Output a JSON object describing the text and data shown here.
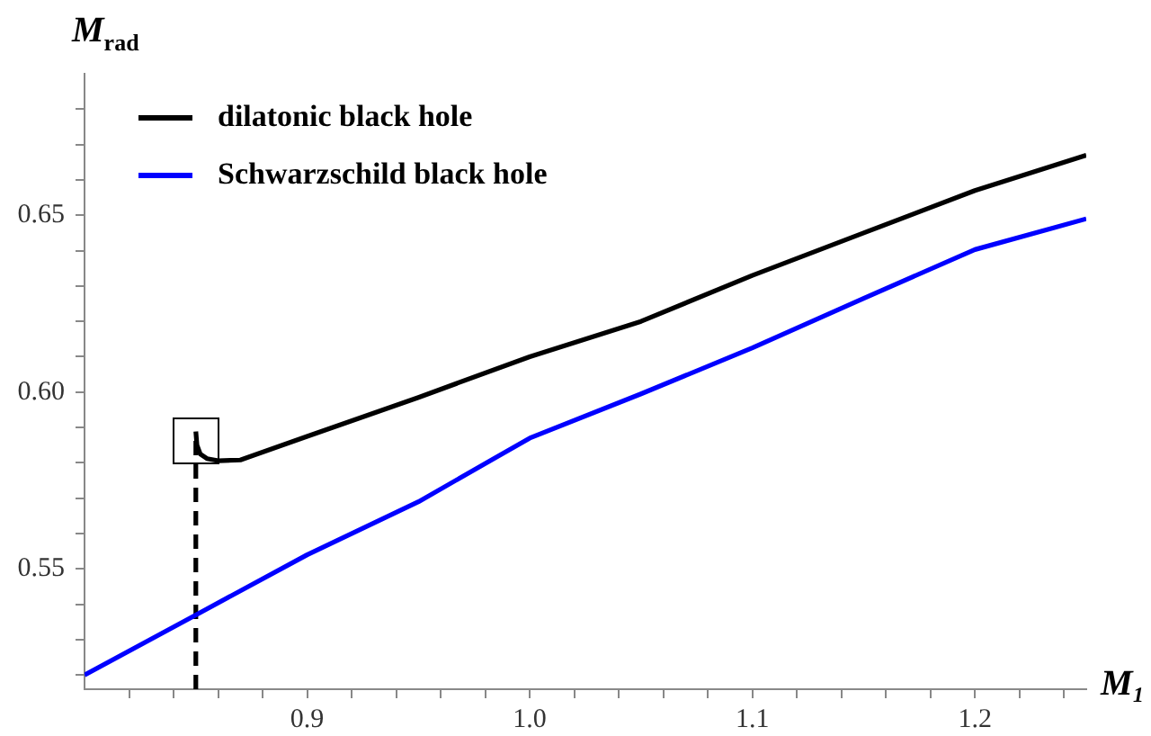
{
  "chart_data": {
    "type": "line",
    "xlabel": "M₁",
    "ylabel": "M$_{rad}$",
    "xlim": [
      0.8,
      1.25
    ],
    "ylim": [
      0.516,
      0.69
    ],
    "xticks": [
      {
        "value": 0.82,
        "label": null
      },
      {
        "value": 0.84,
        "label": null
      },
      {
        "value": 0.86,
        "label": null
      },
      {
        "value": 0.88,
        "label": null
      },
      {
        "value": 0.9,
        "label": "0.9"
      },
      {
        "value": 0.92,
        "label": null
      },
      {
        "value": 0.94,
        "label": null
      },
      {
        "value": 0.96,
        "label": null
      },
      {
        "value": 0.98,
        "label": null
      },
      {
        "value": 1.0,
        "label": "1.0"
      },
      {
        "value": 1.02,
        "label": null
      },
      {
        "value": 1.04,
        "label": null
      },
      {
        "value": 1.06,
        "label": null
      },
      {
        "value": 1.08,
        "label": null
      },
      {
        "value": 1.1,
        "label": "1.1"
      },
      {
        "value": 1.12,
        "label": null
      },
      {
        "value": 1.14,
        "label": null
      },
      {
        "value": 1.16,
        "label": null
      },
      {
        "value": 1.18,
        "label": null
      },
      {
        "value": 1.2,
        "label": "1.2"
      },
      {
        "value": 1.22,
        "label": null
      },
      {
        "value": 1.24,
        "label": null
      }
    ],
    "yticks": [
      {
        "value": 0.52,
        "label": null
      },
      {
        "value": 0.53,
        "label": null
      },
      {
        "value": 0.54,
        "label": null
      },
      {
        "value": 0.55,
        "label": "0.55"
      },
      {
        "value": 0.56,
        "label": null
      },
      {
        "value": 0.57,
        "label": null
      },
      {
        "value": 0.58,
        "label": null
      },
      {
        "value": 0.59,
        "label": null
      },
      {
        "value": 0.6,
        "label": "0.60"
      },
      {
        "value": 0.61,
        "label": null
      },
      {
        "value": 0.62,
        "label": null
      },
      {
        "value": 0.63,
        "label": null
      },
      {
        "value": 0.64,
        "label": null
      },
      {
        "value": 0.65,
        "label": "0.65"
      },
      {
        "value": 0.66,
        "label": null
      },
      {
        "value": 0.67,
        "label": null
      },
      {
        "value": 0.68,
        "label": null
      }
    ],
    "grid": false,
    "legend": "top left",
    "marker": "none",
    "line_style": "solid",
    "series": [
      {
        "name": "dilatonic black hole",
        "color": "#000000",
        "x": [
          0.85,
          0.8505,
          0.852,
          0.855,
          0.86,
          0.87,
          0.9,
          0.95,
          1.0,
          1.05,
          1.1,
          1.15,
          1.2,
          1.25
        ],
        "values": [
          0.5888,
          0.585,
          0.5825,
          0.5812,
          0.5806,
          0.5808,
          0.5875,
          0.5985,
          0.61,
          0.62,
          0.633,
          0.645,
          0.657,
          0.667
        ]
      },
      {
        "name": "Schwarzschild black hole",
        "color": "#0000ff",
        "x": [
          0.8,
          0.85,
          0.9,
          0.95,
          1.0,
          1.05,
          1.1,
          1.15,
          1.2,
          1.25
        ],
        "values": [
          0.52,
          0.537,
          0.554,
          0.569,
          0.587,
          0.5995,
          0.6125,
          0.6265,
          0.6403,
          0.649
        ]
      },
      {
        "type": "line",
        "line_style": "dashed",
        "color": "#000000",
        "x": [
          0.85,
          0.85
        ],
        "values": [
          0.516,
          0.5888
        ]
      }
    ]
  }
}
